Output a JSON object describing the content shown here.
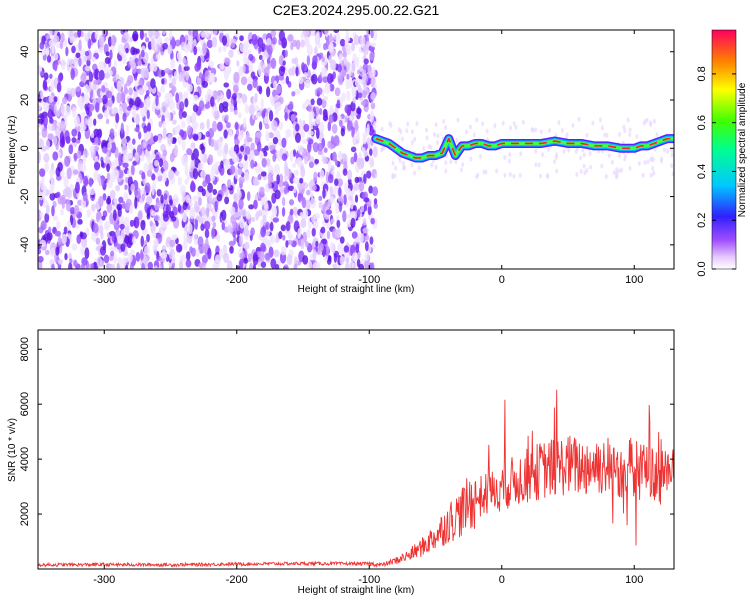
{
  "title": "C2E3.2024.295.00.22.G21",
  "chart_data": [
    {
      "type": "heatmap",
      "xlabel": "Height of straight line (km)",
      "ylabel": "Frequency (Hz)",
      "xlim": [
        -350,
        130
      ],
      "ylim": [
        -50,
        49
      ],
      "xticks": [
        -300,
        -200,
        -100,
        0,
        100
      ],
      "yticks": [
        -40,
        -20,
        0,
        20,
        40
      ],
      "colorbar": {
        "label": "Normalized spectral amplitude",
        "range": [
          0,
          0.98
        ],
        "ticks": [
          0.0,
          0.2,
          0.4,
          0.6,
          0.8
        ]
      },
      "noise_region": {
        "x": [
          -350,
          -95
        ],
        "y": [
          -50,
          49
        ]
      },
      "signal_trace": {
        "x": [
          -95,
          -90,
          -85,
          -80,
          -75,
          -70,
          -65,
          -60,
          -55,
          -50,
          -45,
          -40,
          -35,
          -30,
          -25,
          -20,
          -15,
          -10,
          -5,
          0,
          10,
          20,
          30,
          40,
          50,
          60,
          70,
          80,
          90,
          100,
          105,
          110,
          115,
          120,
          125,
          130
        ],
        "y": [
          4,
          3,
          2,
          0,
          -2,
          -3,
          -4,
          -4,
          -3,
          -3,
          -2,
          4,
          -3,
          1,
          1,
          2,
          2,
          1,
          1,
          2,
          2,
          2,
          2,
          3,
          2,
          2,
          1,
          1,
          0,
          0,
          1,
          1,
          2,
          3,
          4,
          4
        ]
      },
      "grid": false
    },
    {
      "type": "line",
      "xlabel": "Height of straight line (km)",
      "ylabel": "SNR (10 * v/v)",
      "xlim": [
        -350,
        130
      ],
      "ylim": [
        0,
        8700
      ],
      "xticks": [
        -300,
        -200,
        -100,
        0,
        100
      ],
      "yticks": [
        2000,
        4000,
        6000,
        8000
      ],
      "color": "#ee3333",
      "series": [
        {
          "x": [
            -350,
            -300,
            -250,
            -200,
            -150,
            -100,
            -90,
            -80,
            -70,
            -60,
            -50,
            -40,
            -30,
            -20,
            -10,
            0,
            10,
            20,
            30,
            40,
            50,
            60,
            70,
            80,
            90,
            100,
            110,
            120,
            130
          ],
          "values": [
            150,
            160,
            150,
            180,
            200,
            190,
            150,
            300,
            500,
            800,
            1200,
            1700,
            2100,
            2600,
            2700,
            3000,
            3200,
            3400,
            3600,
            3700,
            3800,
            3700,
            3800,
            3800,
            3600,
            3700,
            3600,
            3300,
            3500
          ]
        }
      ],
      "grid": false
    }
  ]
}
